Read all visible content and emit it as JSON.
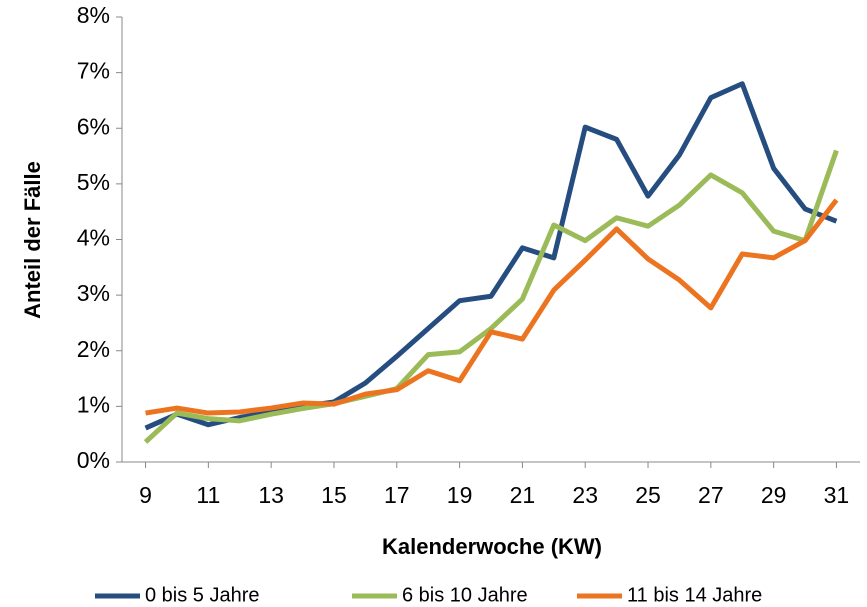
{
  "chart_data": {
    "type": "line",
    "xlabel": "Kalenderwoche (KW)",
    "ylabel": "Anteil der Fälle",
    "x": [
      9,
      10,
      11,
      12,
      13,
      14,
      15,
      16,
      17,
      18,
      19,
      20,
      21,
      22,
      23,
      24,
      25,
      26,
      27,
      28,
      29,
      30,
      31
    ],
    "xlim": [
      8.25,
      31.75
    ],
    "xticks": [
      9,
      11,
      13,
      15,
      17,
      19,
      21,
      23,
      25,
      27,
      29,
      31
    ],
    "ylim": [
      0,
      8
    ],
    "yticks": [
      {
        "value": 0,
        "label": "0%"
      },
      {
        "value": 1,
        "label": "1%"
      },
      {
        "value": 2,
        "label": "2%"
      },
      {
        "value": 3,
        "label": "3%"
      },
      {
        "value": 4,
        "label": "4%"
      },
      {
        "value": 5,
        "label": "5%"
      },
      {
        "value": 6,
        "label": "6%"
      },
      {
        "value": 7,
        "label": "7%"
      },
      {
        "value": 8,
        "label": "8%"
      }
    ],
    "grid": false,
    "legend": "bottom",
    "series": [
      {
        "name": "0 bis 5 Jahre",
        "color": "#264d80",
        "values": [
          0.61,
          0.86,
          0.67,
          0.8,
          0.9,
          1.0,
          1.08,
          1.42,
          1.9,
          2.4,
          2.9,
          2.98,
          3.85,
          3.67,
          6.02,
          5.8,
          4.78,
          5.52,
          6.55,
          6.8,
          5.28,
          4.55,
          4.33
        ]
      },
      {
        "name": "6 bis 10 Jahre",
        "color": "#9bbb59",
        "values": [
          0.36,
          0.88,
          0.78,
          0.74,
          0.86,
          0.96,
          1.05,
          1.18,
          1.32,
          1.93,
          1.98,
          2.4,
          2.93,
          4.26,
          3.98,
          4.39,
          4.24,
          4.62,
          5.16,
          4.84,
          4.15,
          3.98,
          5.6
        ]
      },
      {
        "name": "11 bis 14 Jahre",
        "color": "#ec7420",
        "values": [
          0.88,
          0.97,
          0.88,
          0.9,
          0.97,
          1.06,
          1.04,
          1.22,
          1.3,
          1.64,
          1.46,
          2.34,
          2.21,
          3.09,
          3.63,
          4.19,
          3.65,
          3.27,
          2.77,
          3.74,
          3.67,
          3.98,
          4.71
        ]
      }
    ]
  }
}
